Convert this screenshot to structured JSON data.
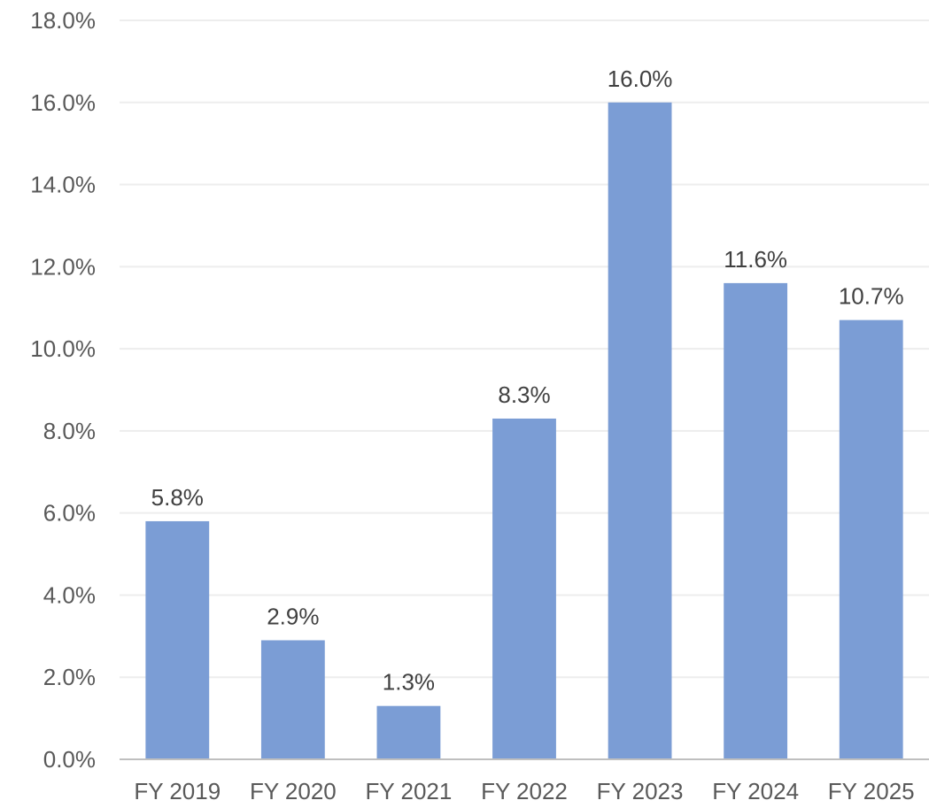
{
  "chart_data": {
    "type": "bar",
    "categories": [
      "FY 2019",
      "FY 2020",
      "FY 2021",
      "FY 2022",
      "FY 2023",
      "FY 2024",
      "FY 2025"
    ],
    "values": [
      5.8,
      2.9,
      1.3,
      8.3,
      16.0,
      11.6,
      10.7
    ],
    "data_labels": [
      "5.8%",
      "2.9%",
      "1.3%",
      "8.3%",
      "16.0%",
      "11.6%",
      "10.7%"
    ],
    "y_ticks": [
      "0.0%",
      "2.0%",
      "4.0%",
      "6.0%",
      "8.0%",
      "10.0%",
      "12.0%",
      "14.0%",
      "16.0%",
      "18.0%"
    ],
    "ylim": [
      0,
      18
    ],
    "title": "",
    "xlabel": "",
    "ylabel": "",
    "grid": true,
    "legend": "none",
    "bar_color": "#7b9dd5",
    "gridline_color": "#ededed",
    "axis_color": "#bfbfbf"
  }
}
